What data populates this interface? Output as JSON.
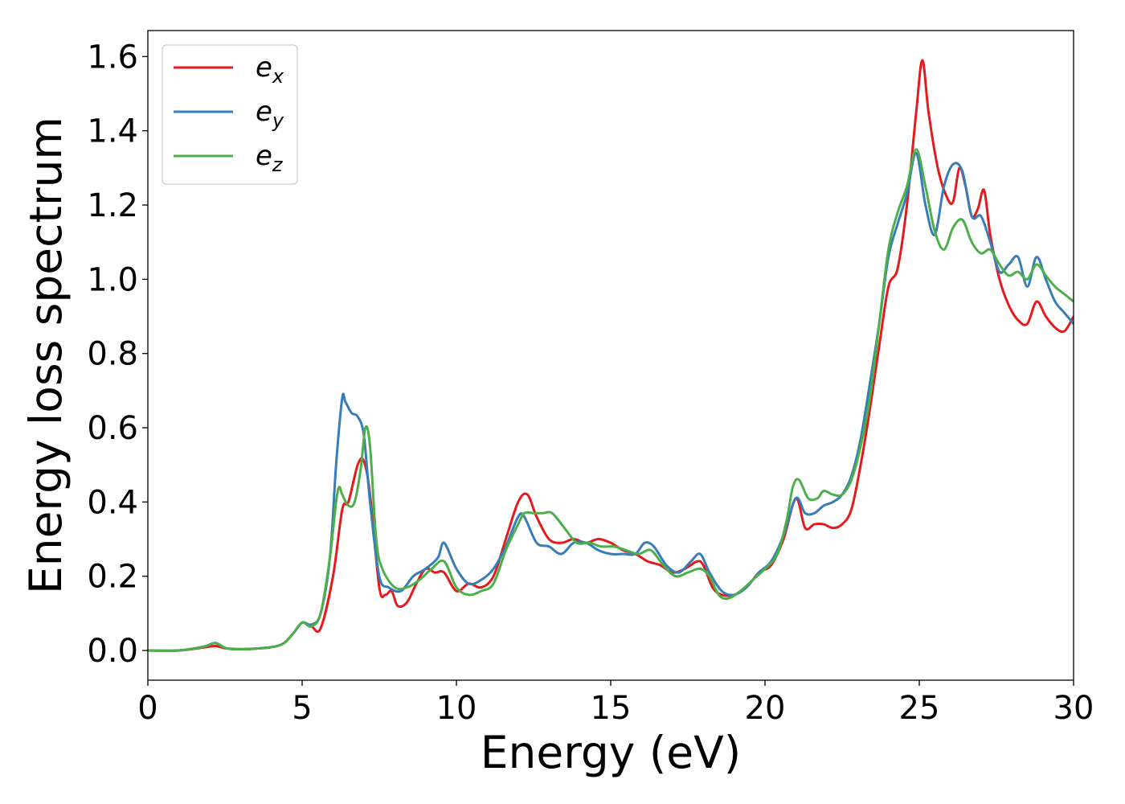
{
  "chart_data": {
    "type": "line",
    "xlabel": "Energy (eV)",
    "ylabel": "Energy loss spectrum",
    "xlim": [
      0,
      30
    ],
    "ylim": [
      -0.08,
      1.67
    ],
    "xticks": [
      0,
      5,
      10,
      15,
      20,
      25,
      30
    ],
    "xtick_labels": [
      "0",
      "5",
      "10",
      "15",
      "20",
      "25",
      "30"
    ],
    "yticks": [
      0.0,
      0.2,
      0.4,
      0.6,
      0.8,
      1.0,
      1.2,
      1.4,
      1.6
    ],
    "ytick_labels": [
      "0.0",
      "0.2",
      "0.4",
      "0.6",
      "0.8",
      "1.0",
      "1.2",
      "1.4",
      "1.6"
    ],
    "grid": false,
    "legend_position": "top-left",
    "series": [
      {
        "name": "e",
        "subscript": "x",
        "color": "#e41a1c",
        "x": [
          0,
          1,
          1.8,
          2.2,
          2.6,
          3.5,
          4.3,
          4.7,
          5.0,
          5.3,
          5.6,
          6.0,
          6.3,
          6.5,
          6.8,
          7.0,
          7.2,
          7.5,
          7.7,
          7.9,
          8.1,
          8.4,
          8.7,
          9.0,
          9.3,
          9.6,
          10.0,
          10.4,
          10.8,
          11.2,
          11.6,
          12.0,
          12.3,
          12.6,
          13.0,
          13.4,
          13.8,
          14.2,
          14.6,
          15.0,
          15.4,
          15.8,
          16.2,
          16.6,
          17.0,
          17.4,
          17.8,
          18.0,
          18.3,
          18.6,
          19.0,
          19.4,
          19.8,
          20.2,
          20.6,
          21.0,
          21.3,
          21.6,
          21.9,
          22.2,
          22.5,
          22.8,
          23.1,
          23.4,
          23.7,
          24.0,
          24.3,
          24.6,
          24.9,
          25.1,
          25.3,
          25.6,
          25.9,
          26.1,
          26.3,
          26.5,
          26.7,
          26.9,
          27.1,
          27.3,
          27.6,
          27.9,
          28.2,
          28.5,
          28.8,
          29.1,
          29.4,
          29.7,
          30.0
        ],
        "y": [
          0.0,
          0.0,
          0.008,
          0.012,
          0.005,
          0.005,
          0.015,
          0.045,
          0.075,
          0.065,
          0.06,
          0.2,
          0.38,
          0.4,
          0.5,
          0.51,
          0.42,
          0.17,
          0.15,
          0.16,
          0.12,
          0.13,
          0.18,
          0.22,
          0.21,
          0.21,
          0.16,
          0.18,
          0.17,
          0.2,
          0.3,
          0.4,
          0.42,
          0.36,
          0.3,
          0.29,
          0.3,
          0.29,
          0.3,
          0.29,
          0.27,
          0.26,
          0.24,
          0.23,
          0.21,
          0.22,
          0.24,
          0.23,
          0.17,
          0.15,
          0.15,
          0.17,
          0.21,
          0.23,
          0.3,
          0.41,
          0.33,
          0.34,
          0.34,
          0.33,
          0.34,
          0.38,
          0.5,
          0.65,
          0.82,
          0.98,
          1.03,
          1.2,
          1.45,
          1.59,
          1.45,
          1.3,
          1.22,
          1.21,
          1.3,
          1.25,
          1.17,
          1.19,
          1.24,
          1.12,
          1.0,
          0.93,
          0.89,
          0.88,
          0.94,
          0.9,
          0.87,
          0.86,
          0.9
        ]
      },
      {
        "name": "e",
        "subscript": "y",
        "color": "#377eb8",
        "x": [
          0,
          1,
          1.8,
          2.2,
          2.6,
          3.5,
          4.3,
          4.7,
          5.0,
          5.3,
          5.6,
          5.9,
          6.1,
          6.3,
          6.4,
          6.6,
          6.8,
          7.0,
          7.2,
          7.5,
          7.8,
          8.2,
          8.6,
          9.0,
          9.4,
          9.6,
          10.0,
          10.4,
          10.8,
          11.2,
          11.6,
          12.0,
          12.2,
          12.6,
          13.0,
          13.4,
          13.8,
          14.2,
          14.6,
          15.0,
          15.4,
          15.8,
          16.1,
          16.4,
          16.8,
          17.2,
          17.6,
          17.9,
          18.2,
          18.6,
          19.0,
          19.4,
          19.8,
          20.2,
          20.6,
          21.0,
          21.3,
          21.6,
          21.9,
          22.2,
          22.5,
          22.8,
          23.1,
          23.4,
          23.7,
          24.0,
          24.3,
          24.6,
          24.9,
          25.2,
          25.5,
          25.8,
          26.1,
          26.4,
          26.7,
          27.0,
          27.3,
          27.6,
          27.9,
          28.2,
          28.5,
          28.8,
          29.1,
          29.4,
          29.7,
          30.0
        ],
        "y": [
          0.0,
          0.0,
          0.01,
          0.02,
          0.005,
          0.005,
          0.015,
          0.045,
          0.075,
          0.07,
          0.1,
          0.25,
          0.5,
          0.68,
          0.67,
          0.64,
          0.63,
          0.58,
          0.4,
          0.2,
          0.17,
          0.16,
          0.2,
          0.22,
          0.25,
          0.29,
          0.22,
          0.18,
          0.19,
          0.22,
          0.28,
          0.36,
          0.36,
          0.29,
          0.28,
          0.26,
          0.29,
          0.29,
          0.27,
          0.26,
          0.26,
          0.26,
          0.29,
          0.28,
          0.23,
          0.21,
          0.24,
          0.26,
          0.21,
          0.16,
          0.15,
          0.17,
          0.21,
          0.24,
          0.31,
          0.41,
          0.37,
          0.37,
          0.39,
          0.4,
          0.42,
          0.47,
          0.57,
          0.72,
          0.88,
          1.06,
          1.15,
          1.23,
          1.34,
          1.2,
          1.12,
          1.25,
          1.31,
          1.29,
          1.17,
          1.17,
          1.1,
          1.02,
          1.04,
          1.06,
          0.98,
          1.06,
          1.0,
          0.94,
          0.91,
          0.88
        ]
      },
      {
        "name": "e",
        "subscript": "z",
        "color": "#4daf4a",
        "x": [
          0,
          1,
          1.8,
          2.2,
          2.6,
          3.5,
          4.3,
          4.7,
          5.0,
          5.3,
          5.6,
          5.9,
          6.1,
          6.2,
          6.3,
          6.5,
          6.7,
          6.9,
          7.05,
          7.2,
          7.4,
          7.6,
          8.0,
          8.4,
          8.8,
          9.2,
          9.6,
          10.0,
          10.4,
          10.8,
          11.2,
          11.6,
          12.0,
          12.2,
          12.5,
          12.8,
          13.1,
          13.5,
          13.9,
          14.3,
          14.7,
          15.1,
          15.5,
          15.9,
          16.3,
          16.7,
          17.1,
          17.5,
          17.9,
          18.2,
          18.5,
          18.8,
          19.2,
          19.6,
          20.0,
          20.4,
          20.7,
          20.9,
          21.1,
          21.4,
          21.7,
          21.9,
          22.2,
          22.5,
          22.8,
          23.1,
          23.4,
          23.7,
          24.0,
          24.3,
          24.6,
          24.9,
          25.2,
          25.5,
          25.8,
          26.1,
          26.4,
          26.7,
          27.0,
          27.3,
          27.6,
          27.9,
          28.2,
          28.5,
          28.8,
          29.1,
          29.4,
          29.7,
          30.0
        ],
        "y": [
          0.0,
          0.0,
          0.01,
          0.02,
          0.005,
          0.005,
          0.015,
          0.045,
          0.075,
          0.065,
          0.1,
          0.25,
          0.4,
          0.44,
          0.42,
          0.39,
          0.4,
          0.49,
          0.6,
          0.55,
          0.3,
          0.22,
          0.17,
          0.17,
          0.19,
          0.22,
          0.24,
          0.17,
          0.15,
          0.16,
          0.18,
          0.27,
          0.34,
          0.37,
          0.37,
          0.37,
          0.37,
          0.33,
          0.29,
          0.29,
          0.28,
          0.28,
          0.27,
          0.26,
          0.27,
          0.23,
          0.2,
          0.21,
          0.22,
          0.2,
          0.15,
          0.14,
          0.16,
          0.19,
          0.22,
          0.26,
          0.35,
          0.44,
          0.46,
          0.41,
          0.41,
          0.43,
          0.42,
          0.42,
          0.46,
          0.55,
          0.68,
          0.88,
          1.08,
          1.18,
          1.25,
          1.35,
          1.25,
          1.13,
          1.08,
          1.14,
          1.16,
          1.1,
          1.07,
          1.08,
          1.04,
          1.01,
          1.02,
          1.0,
          1.04,
          1.01,
          0.98,
          0.96,
          0.94
        ]
      }
    ]
  }
}
